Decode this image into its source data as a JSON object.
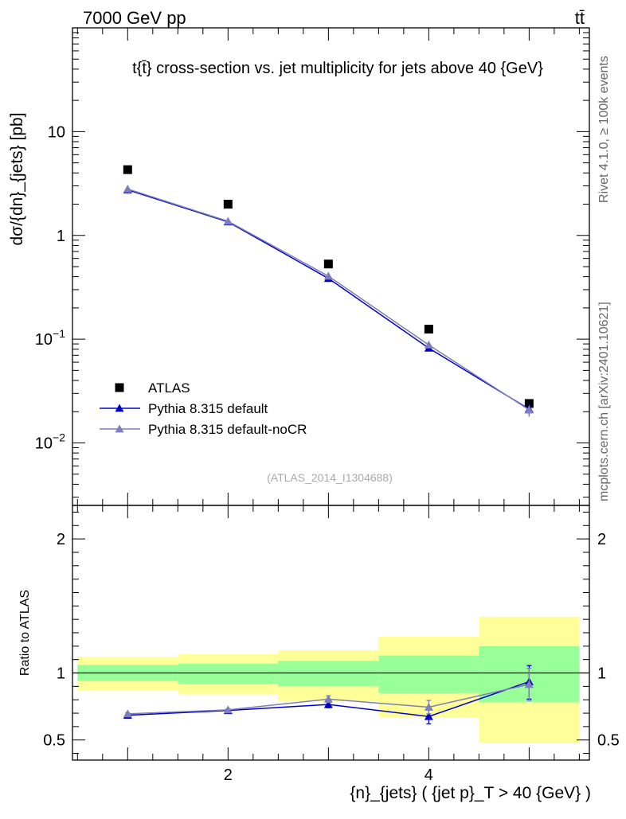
{
  "header": {
    "energy_label": "7000 GeV pp",
    "process_label": "tt̄"
  },
  "side_labels": {
    "rivet": "Rivet 4.1.0, ≥ 100k events",
    "source": "mcplots.cern.ch [arXiv:2401.10621]"
  },
  "chart_data": [
    {
      "type": "line",
      "panel": "main",
      "title": "t{t̄} cross-section vs. jet multiplicity for jets above 40 {GeV}",
      "ylabel": "dσ/{dn}_{jets} [pb]",
      "yscale": "log",
      "ylim": [
        0.0025,
        100
      ],
      "xlim": [
        0.45,
        5.6
      ],
      "yticks": [
        {
          "value": 0.01,
          "base": "10",
          "exp": "−2"
        },
        {
          "value": 0.1,
          "base": "10",
          "exp": "−1"
        },
        {
          "value": 1,
          "label": "1"
        },
        {
          "value": 10,
          "label": "10"
        }
      ],
      "analysis_tag": "(ATLAS_2014_I1304688)",
      "legend_position": "bottom-left",
      "series": [
        {
          "name": "ATLAS",
          "style": "marker-square",
          "color": "#000000",
          "x": [
            1,
            2,
            3,
            4,
            5
          ],
          "values": [
            4.3,
            2.0,
            0.53,
            0.125,
            0.024
          ]
        },
        {
          "name": "Pythia 8.315 default",
          "style": "line-triangle",
          "color": "#0000cc",
          "x": [
            1,
            2,
            3,
            4,
            5
          ],
          "values": [
            2.75,
            1.35,
            0.385,
            0.082,
            0.0212
          ],
          "err_low": [
            0,
            0,
            0,
            0,
            0.0032
          ],
          "err_high": [
            0,
            0,
            0,
            0,
            0.0022
          ]
        },
        {
          "name": "Pythia 8.315 default-noCR",
          "style": "line-triangle",
          "color": "#7e7eb8",
          "x": [
            1,
            2,
            3,
            4,
            5
          ],
          "values": [
            2.8,
            1.37,
            0.405,
            0.088,
            0.0208
          ],
          "err_low": [
            0,
            0,
            0,
            0,
            0.0028
          ],
          "err_high": [
            0,
            0,
            0,
            0,
            0.0022
          ]
        }
      ]
    },
    {
      "type": "line",
      "panel": "ratio",
      "ylabel": "Ratio to ATLAS",
      "xlabel": "{n}_{jets} ( {jet p}_T > 40 {GeV} )",
      "ylim": [
        0.35,
        2.25
      ],
      "xlim": [
        0.45,
        5.6
      ],
      "xticks": [
        2,
        4
      ],
      "yticks": [
        0.5,
        1,
        2
      ],
      "reference_line": 1,
      "bands": [
        {
          "x_low": 0.5,
          "x_high": 1.5,
          "inner": [
            0.94,
            1.06
          ],
          "outer": [
            0.87,
            1.12
          ]
        },
        {
          "x_low": 1.5,
          "x_high": 2.5,
          "inner": [
            0.92,
            1.07
          ],
          "outer": [
            0.84,
            1.14
          ]
        },
        {
          "x_low": 2.5,
          "x_high": 3.5,
          "inner": [
            0.9,
            1.09
          ],
          "outer": [
            0.79,
            1.17
          ]
        },
        {
          "x_low": 3.5,
          "x_high": 4.5,
          "inner": [
            0.85,
            1.13
          ],
          "outer": [
            0.67,
            1.27
          ]
        },
        {
          "x_low": 4.5,
          "x_high": 5.5,
          "inner": [
            0.78,
            1.2
          ],
          "outer": [
            0.48,
            1.42
          ]
        }
      ],
      "series": [
        {
          "name": "Pythia 8.315 default",
          "color": "#0000cc",
          "x": [
            1,
            2,
            3,
            4,
            5
          ],
          "values": [
            0.685,
            0.72,
            0.765,
            0.675,
            0.935
          ],
          "err_low": [
            0.008,
            0.008,
            0.025,
            0.055,
            0.13
          ],
          "err_high": [
            0.008,
            0.008,
            0.025,
            0.055,
            0.12
          ]
        },
        {
          "name": "Pythia 8.315 default-noCR",
          "color": "#7e7eb8",
          "x": [
            1,
            2,
            3,
            4,
            5
          ],
          "values": [
            0.695,
            0.725,
            0.805,
            0.745,
            0.915
          ],
          "err_low": [
            0.008,
            0.008,
            0.025,
            0.05,
            0.12
          ],
          "err_high": [
            0.008,
            0.008,
            0.025,
            0.05,
            0.12
          ]
        }
      ]
    }
  ],
  "colors": {
    "band_inner": "#99ff99",
    "band_outer": "#ffff99",
    "frame": "#000000"
  }
}
